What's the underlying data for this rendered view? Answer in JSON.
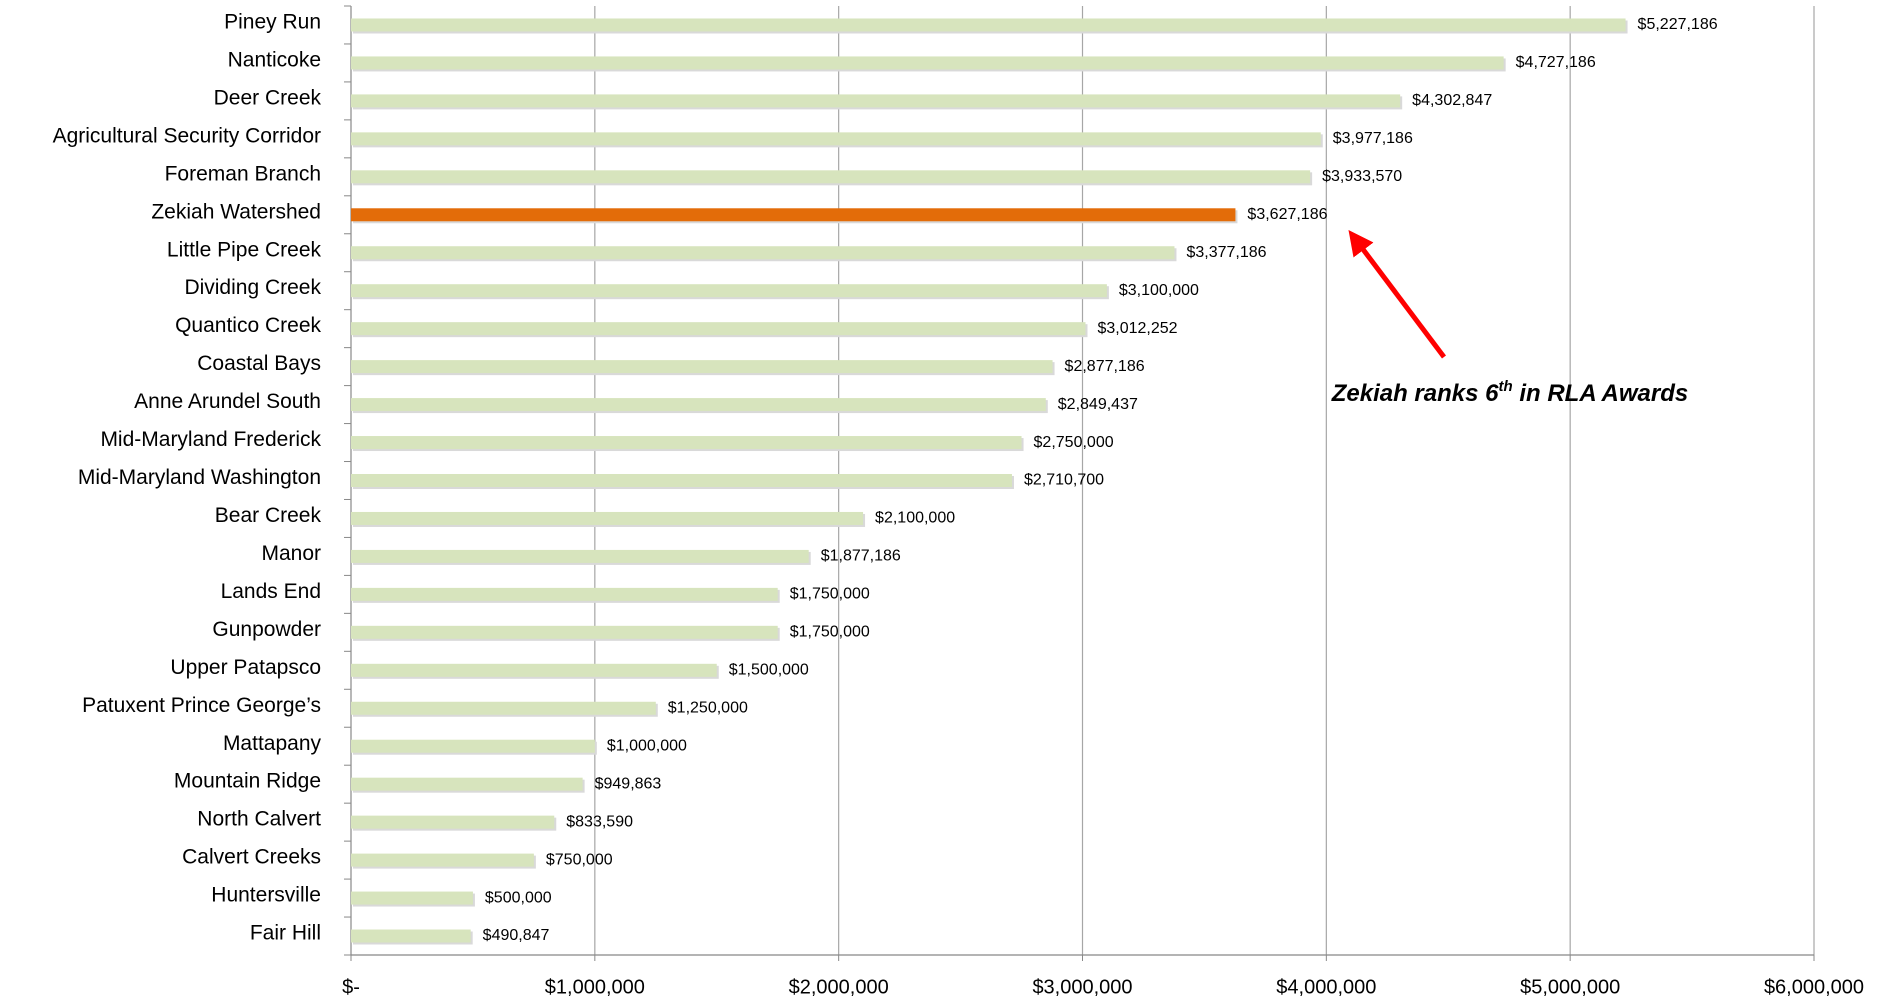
{
  "chart_data": {
    "type": "hbar",
    "categories": [
      "Piney Run",
      "Nanticoke",
      "Deer Creek",
      "Agricultural Security Corridor",
      "Foreman Branch",
      "Zekiah Watershed",
      "Little Pipe Creek",
      "Dividing Creek",
      "Quantico Creek",
      "Coastal Bays",
      "Anne Arundel South",
      "Mid-Maryland Frederick",
      "Mid-Maryland Washington",
      "Bear Creek",
      "Manor",
      "Lands End",
      "Gunpowder",
      "Upper Patapsco",
      "Patuxent Prince George’s",
      "Mattapany",
      "Mountain Ridge",
      "North Calvert",
      "Calvert Creeks",
      "Huntersville",
      "Fair Hill"
    ],
    "values": [
      5227186,
      4727186,
      4302847,
      3977186,
      3933570,
      3627186,
      3377186,
      3100000,
      3012252,
      2877186,
      2849437,
      2750000,
      2710700,
      2100000,
      1877186,
      1750000,
      1750000,
      1500000,
      1250000,
      1000000,
      949863,
      833590,
      750000,
      500000,
      490847
    ],
    "value_labels": [
      "$5,227,186",
      "$4,727,186",
      "$4,302,847",
      "$3,977,186",
      "$3,933,570",
      "$3,627,186",
      "$3,377,186",
      "$3,100,000",
      "$3,012,252",
      "$2,877,186",
      "$2,849,437",
      "$2,750,000",
      "$2,710,700",
      "$2,100,000",
      "$1,877,186",
      "$1,750,000",
      "$1,750,000",
      "$1,500,000",
      "$1,250,000",
      "$1,000,000",
      "$949,863",
      "$833,590",
      "$750,000",
      "$500,000",
      "$490,847"
    ],
    "color": "#d7e4bd",
    "highlight": "Zekiah Watershed",
    "highlight_color": "#e36c09",
    "xlim": [
      0,
      6000000
    ],
    "xticks": [
      {
        "value": 0,
        "label": "$-"
      },
      {
        "value": 1000000,
        "label": "$1,000,000"
      },
      {
        "value": 2000000,
        "label": "$2,000,000"
      },
      {
        "value": 3000000,
        "label": "$3,000,000"
      },
      {
        "value": 4000000,
        "label": "$4,000,000"
      },
      {
        "value": 5000000,
        "label": "$5,000,000"
      },
      {
        "value": 6000000,
        "label": "$6,000,000"
      }
    ],
    "grid": true,
    "annotation": {
      "text": "Zekiah ranks 6",
      "superscript": "th",
      "rest": " in RLA Awards"
    }
  }
}
